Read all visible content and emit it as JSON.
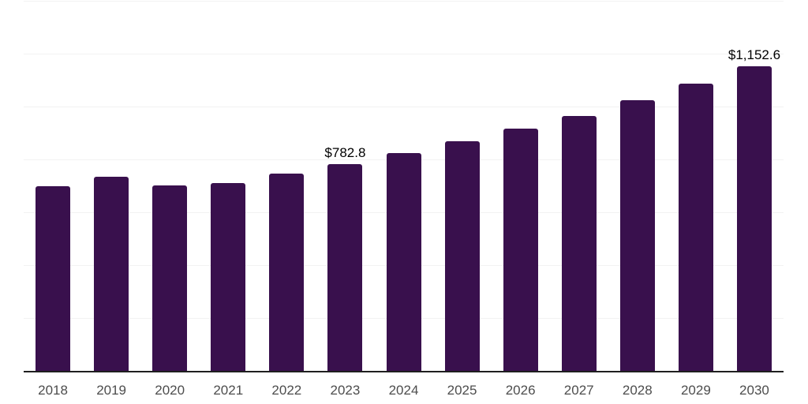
{
  "chart_data": {
    "type": "bar",
    "title": "",
    "xlabel": "",
    "ylabel": "",
    "categories": [
      "2018",
      "2019",
      "2020",
      "2021",
      "2022",
      "2023",
      "2024",
      "2025",
      "2026",
      "2027",
      "2028",
      "2029",
      "2030"
    ],
    "values": [
      699,
      733,
      701,
      710,
      746,
      782.8,
      824,
      869,
      916,
      965,
      1023,
      1088,
      1152.6
    ],
    "annotations": [
      {
        "index": 5,
        "text": "$782.8"
      },
      {
        "index": 12,
        "text": "$1,152.6"
      }
    ],
    "ylim": [
      0,
      1400
    ],
    "gridline_step": 200,
    "grid": true,
    "legend": false,
    "y_axis_labels_visible": false,
    "colors": {
      "bar": "#39104d",
      "gridline": "#f2f2f2",
      "axis_line": "#1f1f1f",
      "value_label": "#000000",
      "tick_label": "#4d4d4d",
      "background": "#ffffff"
    }
  }
}
